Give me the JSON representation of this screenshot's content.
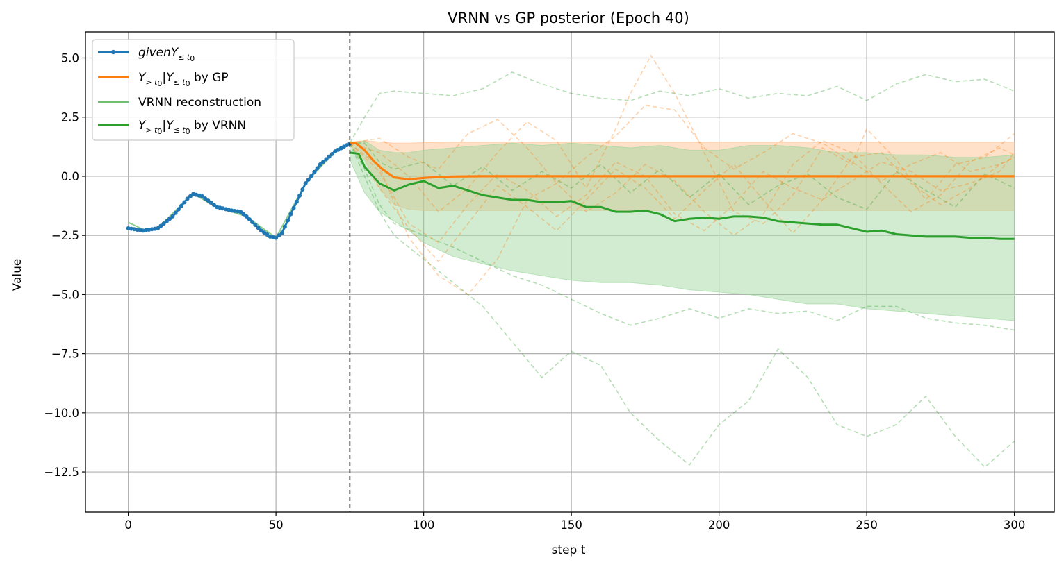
{
  "chart_data": {
    "type": "line",
    "title": "VRNN vs GP posterior (Epoch 40)",
    "xlabel": "step t",
    "ylabel": "Value",
    "xlim": [
      -14.5,
      313.5
    ],
    "ylim": [
      -14.2,
      6.1
    ],
    "grid": true,
    "legend_position": "top-left",
    "xticks": [
      0,
      50,
      100,
      150,
      200,
      250,
      300
    ],
    "xtick_labels": [
      "0",
      "50",
      "100",
      "150",
      "200",
      "250",
      "300"
    ],
    "yticks": [
      5.0,
      2.5,
      0.0,
      -2.5,
      -5.0,
      -7.5,
      -10.0,
      -12.5
    ],
    "ytick_labels": [
      "5.0",
      "2.5",
      "0.0",
      "−2.5",
      "−5.0",
      "−7.5",
      "−10.0",
      "−12.5"
    ],
    "t0": 75,
    "colors": {
      "given": "#1f77b4",
      "gp": "#ff7f0e",
      "vrnn": "#2ca02c",
      "vrnn_recon": "#71c071",
      "gp_band": "#ffbb88",
      "vrnn_band": "#98d598"
    },
    "legend": [
      {
        "key": "given",
        "math": "given",
        "sym": "Y",
        "sub": "≤ t",
        "sub0": "0",
        "suffix": ""
      },
      {
        "key": "gp",
        "math": "",
        "sym": "Y",
        "sub": "> t",
        "sub0": "0",
        "mid": "|Y",
        "sub2": "≤ t",
        "sub20": "0",
        "suffix": " by GP"
      },
      {
        "key": "vrnn_recon",
        "text": "VRNN reconstruction"
      },
      {
        "key": "vrnn",
        "math": "",
        "sym": "Y",
        "sub": "> t",
        "sub0": "0",
        "mid": "|Y",
        "sub2": "≤ t",
        "sub20": "0",
        "suffix": " by VRNN"
      }
    ],
    "series": [
      {
        "name": "given Y≤t0",
        "role": "given",
        "x": [
          0,
          5,
          10,
          15,
          20,
          22,
          25,
          30,
          35,
          38,
          40,
          45,
          48,
          50,
          52,
          55,
          60,
          65,
          70,
          75
        ],
        "y": [
          -2.2,
          -2.3,
          -2.2,
          -1.7,
          -0.95,
          -0.75,
          -0.85,
          -1.3,
          -1.45,
          -1.5,
          -1.7,
          -2.3,
          -2.55,
          -2.6,
          -2.4,
          -1.6,
          -0.3,
          0.5,
          1.05,
          1.38
        ]
      },
      {
        "name": "Y>t0|Y≤t0 by GP",
        "role": "gp_mean",
        "x": [
          75,
          77,
          80,
          83,
          86,
          90,
          95,
          100,
          105,
          110,
          120,
          150,
          200,
          250,
          300
        ],
        "y": [
          1.42,
          1.4,
          1.1,
          0.65,
          0.3,
          -0.05,
          -0.13,
          -0.07,
          -0.03,
          -0.01,
          0,
          0,
          0,
          0,
          0
        ]
      },
      {
        "name": "Y>t0|Y≤t0 by VRNN",
        "role": "vrnn_mean",
        "x": [
          75,
          78,
          80,
          85,
          90,
          95,
          100,
          105,
          110,
          115,
          120,
          125,
          130,
          135,
          140,
          145,
          150,
          155,
          160,
          165,
          170,
          175,
          180,
          185,
          190,
          195,
          200,
          205,
          210,
          215,
          220,
          225,
          230,
          235,
          240,
          245,
          250,
          255,
          260,
          265,
          270,
          275,
          280,
          285,
          290,
          295,
          300
        ],
        "y": [
          1.0,
          0.95,
          0.4,
          -0.3,
          -0.6,
          -0.35,
          -0.2,
          -0.5,
          -0.4,
          -0.6,
          -0.8,
          -0.9,
          -1.0,
          -1.0,
          -1.1,
          -1.1,
          -1.05,
          -1.3,
          -1.3,
          -1.5,
          -1.5,
          -1.45,
          -1.6,
          -1.9,
          -1.8,
          -1.75,
          -1.8,
          -1.7,
          -1.7,
          -1.75,
          -1.9,
          -1.95,
          -2.0,
          -2.05,
          -2.05,
          -2.2,
          -2.35,
          -2.3,
          -2.45,
          -2.5,
          -2.55,
          -2.55,
          -2.55,
          -2.6,
          -2.6,
          -2.65,
          -2.65
        ]
      },
      {
        "name": "VRNN reconstruction",
        "role": "vrnn_recon",
        "x": [
          0,
          5,
          10,
          20,
          22,
          30,
          40,
          50,
          60,
          70,
          75
        ],
        "y": [
          -1.95,
          -2.25,
          -2.2,
          -0.95,
          -0.75,
          -1.3,
          -1.7,
          -2.6,
          -0.3,
          1.05,
          1.38
        ]
      }
    ],
    "bands": [
      {
        "name": "GP posterior interval",
        "role": "gp_band",
        "x": [
          75,
          80,
          85,
          90,
          95,
          100,
          110,
          120,
          150,
          200,
          250,
          300
        ],
        "upper": [
          1.45,
          1.5,
          1.45,
          1.4,
          1.4,
          1.42,
          1.44,
          1.44,
          1.44,
          1.44,
          1.44,
          1.44
        ],
        "lower": [
          1.3,
          0.7,
          -0.5,
          -1.2,
          -1.4,
          -1.45,
          -1.45,
          -1.45,
          -1.45,
          -1.45,
          -1.45,
          -1.45
        ]
      },
      {
        "name": "VRNN posterior interval",
        "role": "vrnn_band",
        "x": [
          75,
          80,
          85,
          90,
          95,
          100,
          110,
          120,
          130,
          140,
          150,
          160,
          170,
          180,
          190,
          200,
          210,
          220,
          230,
          240,
          250,
          260,
          270,
          280,
          290,
          300
        ],
        "upper": [
          1.3,
          1.5,
          1.1,
          1.0,
          1.0,
          1.1,
          1.2,
          1.3,
          1.4,
          1.3,
          1.4,
          1.3,
          1.2,
          1.3,
          1.1,
          1.1,
          1.3,
          1.3,
          1.2,
          1.0,
          1.0,
          0.9,
          0.9,
          0.8,
          0.8,
          0.9
        ],
        "lower": [
          0.7,
          -0.7,
          -1.5,
          -1.9,
          -2.3,
          -2.8,
          -3.4,
          -3.7,
          -4.0,
          -4.2,
          -4.4,
          -4.5,
          -4.5,
          -4.6,
          -4.8,
          -4.9,
          -5.0,
          -5.2,
          -5.4,
          -5.4,
          -5.6,
          -5.7,
          -5.8,
          -5.9,
          -6.0,
          -6.1
        ]
      }
    ],
    "samples": [
      {
        "role": "vrnn_sample",
        "x": [
          75,
          80,
          85,
          90,
          100,
          110,
          120,
          130,
          140,
          150,
          160,
          170,
          180,
          190,
          200,
          210,
          220,
          230,
          240,
          250,
          260,
          270,
          280,
          290,
          300
        ],
        "y": [
          1.4,
          2.5,
          3.5,
          3.6,
          3.5,
          3.4,
          3.7,
          4.4,
          3.9,
          3.5,
          3.3,
          3.2,
          3.6,
          3.4,
          3.7,
          3.3,
          3.5,
          3.4,
          3.8,
          3.2,
          3.9,
          4.3,
          4.0,
          4.1,
          3.6
        ]
      },
      {
        "role": "vrnn_sample",
        "x": [
          75,
          80,
          85,
          90,
          100,
          110,
          120,
          130,
          140,
          150,
          160,
          170,
          180,
          190,
          200,
          210,
          220,
          230,
          240,
          250,
          260,
          270,
          280,
          290,
          300
        ],
        "y": [
          1.4,
          0.0,
          -1.5,
          -2.5,
          -3.5,
          -4.5,
          -5.5,
          -7.0,
          -8.5,
          -7.4,
          -8.0,
          -10.0,
          -11.2,
          -12.2,
          -10.5,
          -9.5,
          -7.3,
          -8.5,
          -10.5,
          -11.0,
          -10.5,
          -9.3,
          -11.0,
          -12.3,
          -11.2
        ]
      },
      {
        "role": "vrnn_sample",
        "x": [
          75,
          80,
          85,
          90,
          100,
          110,
          120,
          130,
          140,
          150,
          160,
          170,
          180,
          190,
          200,
          210,
          220,
          230,
          240,
          250,
          260,
          270,
          280,
          290,
          300
        ],
        "y": [
          1.4,
          0.3,
          -1.2,
          -2.0,
          -2.5,
          -3.0,
          -3.6,
          -4.2,
          -4.6,
          -5.2,
          -5.8,
          -6.3,
          -6.0,
          -5.6,
          -6.0,
          -5.6,
          -5.8,
          -5.7,
          -6.1,
          -5.5,
          -5.5,
          -6.0,
          -6.2,
          -6.3,
          -6.5
        ]
      },
      {
        "role": "vrnn_sample",
        "x": [
          75,
          80,
          85,
          90,
          100,
          110,
          120,
          130,
          140,
          150,
          160,
          170,
          180,
          190,
          200,
          210,
          220,
          230,
          240,
          250,
          260,
          270,
          280,
          290,
          300
        ],
        "y": [
          1.4,
          1.4,
          0.6,
          0.3,
          0.6,
          -0.4,
          0.4,
          -0.6,
          0.2,
          -0.5,
          0.5,
          -0.7,
          0.3,
          -0.9,
          0.1,
          -1.2,
          -0.4,
          0.1,
          -0.9,
          -1.4,
          0.2,
          -0.6,
          -1.3,
          0.1,
          -0.5
        ]
      },
      {
        "role": "gp_sample",
        "x": [
          75,
          85,
          95,
          105,
          115,
          125,
          135,
          145,
          155,
          165,
          170,
          177,
          185,
          195,
          205,
          215,
          225,
          235,
          245,
          250,
          260,
          270,
          280,
          290,
          300
        ],
        "y": [
          1.4,
          1.0,
          0.0,
          -1.5,
          -0.5,
          1.0,
          2.3,
          1.5,
          -0.5,
          2.0,
          3.5,
          5.1,
          3.5,
          1.0,
          -1.5,
          -2.0,
          -0.8,
          1.2,
          0.5,
          2.0,
          0.7,
          -1.0,
          0.5,
          0.8,
          1.8
        ]
      },
      {
        "role": "gp_sample",
        "x": [
          75,
          85,
          95,
          105,
          115,
          125,
          135,
          145,
          155,
          165,
          175,
          185,
          195,
          205,
          215,
          225,
          235,
          245,
          255,
          265,
          275,
          285,
          295,
          300
        ],
        "y": [
          1.4,
          -0.5,
          -2.2,
          -3.6,
          -2.0,
          -0.4,
          -1.3,
          -2.3,
          -1.0,
          0.3,
          -0.5,
          -1.8,
          -0.6,
          0.5,
          -1.0,
          -2.4,
          -1.0,
          0.8,
          1.0,
          -0.3,
          -1.2,
          -0.5,
          0.5,
          0.8
        ]
      },
      {
        "role": "gp_sample",
        "x": [
          75,
          85,
          95,
          105,
          115,
          125,
          135,
          145,
          155,
          165,
          175,
          185,
          195,
          205,
          215,
          225,
          235,
          245,
          255,
          265,
          275,
          285,
          295,
          300
        ],
        "y": [
          1.4,
          0.4,
          -2.6,
          -4.2,
          -5.0,
          -3.5,
          -1.0,
          -0.3,
          -1.5,
          -0.7,
          0.5,
          -0.2,
          -1.5,
          -2.5,
          -1.6,
          0.5,
          1.5,
          1.0,
          -0.3,
          -1.5,
          -0.8,
          0.6,
          1.2,
          0.9
        ]
      },
      {
        "role": "gp_sample",
        "x": [
          75,
          85,
          95,
          105,
          115,
          125,
          135,
          145,
          155,
          165,
          175,
          185,
          195,
          205,
          215,
          225,
          235,
          245,
          255,
          265,
          275,
          285,
          295,
          300
        ],
        "y": [
          1.4,
          1.6,
          0.8,
          0.3,
          1.8,
          2.4,
          1.2,
          -0.3,
          0.8,
          1.7,
          3.0,
          2.8,
          1.2,
          0.3,
          1.0,
          1.8,
          1.4,
          0.6,
          -0.2,
          0.5,
          1.0,
          0.2,
          0.5,
          0.8
        ]
      },
      {
        "role": "gp_sample",
        "x": [
          75,
          85,
          95,
          105,
          115,
          125,
          135,
          145,
          155,
          165,
          175,
          185,
          195,
          205,
          215,
          225,
          235,
          245,
          255,
          265,
          275,
          285,
          295,
          300
        ],
        "y": [
          1.4,
          0.2,
          -2.0,
          -2.8,
          -1.2,
          0.1,
          -0.6,
          -1.7,
          -0.8,
          0.6,
          0.0,
          -1.6,
          -2.3,
          -1.2,
          0.2,
          -0.5,
          -1.0,
          -0.2,
          0.6,
          0.2,
          -0.6,
          -0.3,
          0.2,
          1.0
        ]
      }
    ]
  }
}
